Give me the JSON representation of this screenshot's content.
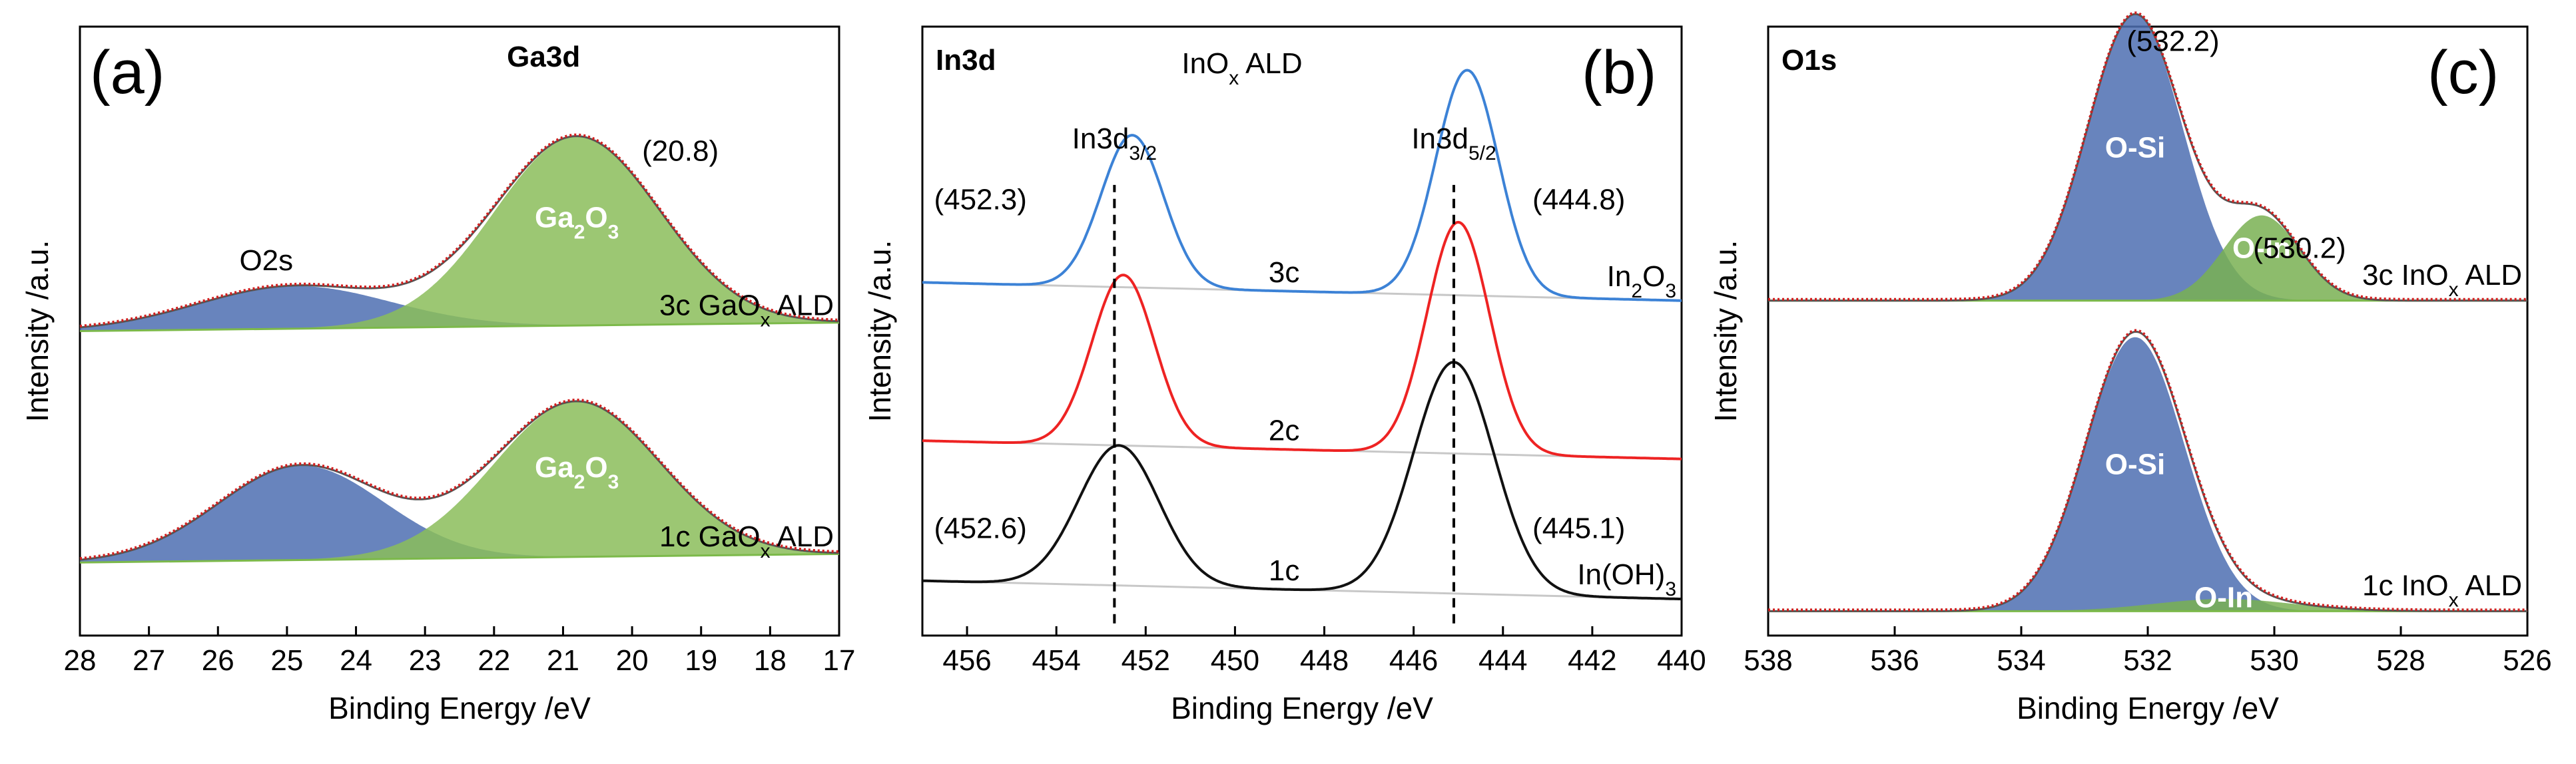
{
  "chart_data": [
    {
      "type": "line",
      "panel": "a",
      "panel_label": "(a)",
      "title": "Ga3d",
      "xlabel": "Binding Energy /eV",
      "ylabel": "Intensity /a.u.",
      "xlim": [
        28,
        17
      ],
      "xticks": [
        "28",
        "27",
        "26",
        "25",
        "24",
        "23",
        "22",
        "21",
        "20",
        "19",
        "18",
        "17"
      ],
      "ylim": [
        0,
        1
      ],
      "grid": false,
      "annotations": [
        {
          "text": "(20.8)",
          "x": 19.3,
          "y": 0.78
        },
        {
          "text": "O2s",
          "x": 25.3,
          "y": 0.6
        }
      ],
      "spectra": [
        {
          "name": "3c GaOx ALD",
          "label_main": "3c GaO",
          "label_sub": "x",
          "label_tail": " ALD",
          "offset": 0.5,
          "baseline": [
            0.0,
            0.014
          ],
          "components": [
            {
              "name": "O2s",
              "type": "gauss",
              "center": 24.9,
              "height": 0.07,
              "width": 1.4,
              "color": "#4e6eb1"
            },
            {
              "name": "Ga2O3",
              "type": "gauss",
              "center": 20.8,
              "height": 0.31,
              "width": 1.2,
              "color": "#8bbd5a",
              "label_main": "Ga",
              "label_s1": "2",
              "label_mid": "O",
              "label_s2": "3"
            }
          ]
        },
        {
          "name": "1c GaOx ALD",
          "label_main": "1c GaO",
          "label_sub": "x",
          "label_tail": " ALD",
          "offset": 0.12,
          "baseline": [
            0.0,
            0.014
          ],
          "components": [
            {
              "name": "O2s",
              "type": "gauss",
              "center": 24.8,
              "height": 0.155,
              "width": 1.2,
              "color": "#4e6eb1"
            },
            {
              "name": "Ga2O3",
              "type": "gauss",
              "center": 20.8,
              "height": 0.255,
              "width": 1.2,
              "color": "#8bbd5a",
              "label_main": "Ga",
              "label_s1": "2",
              "label_mid": "O",
              "label_s2": "3"
            }
          ]
        }
      ]
    },
    {
      "type": "line",
      "panel": "b",
      "panel_label": "(b)",
      "title": "In3d",
      "subtitle_main": "InO",
      "subtitle_sub": "x",
      "subtitle_tail": " ALD",
      "xlabel": "Binding Energy /eV",
      "ylabel": "Intensity /a.u.",
      "xlim": [
        457,
        440
      ],
      "xticks": [
        "456",
        "454",
        "452",
        "450",
        "448",
        "446",
        "444",
        "442",
        "440"
      ],
      "ylim": [
        0,
        1
      ],
      "grid": false,
      "peak_lines": [
        {
          "x": 452.7,
          "label_main": "In3d",
          "label_sub": "3/2"
        },
        {
          "x": 445.1,
          "label_main": "In3d",
          "label_sub": "5/2"
        }
      ],
      "annotations": [
        {
          "text": "(452.3)",
          "x": 455.7,
          "y": 0.7
        },
        {
          "text": "(444.8)",
          "x": 442.3,
          "y": 0.7
        },
        {
          "text": "(452.6)",
          "x": 455.7,
          "y": 0.16
        },
        {
          "text": "(445.1)",
          "x": 442.3,
          "y": 0.16
        }
      ],
      "series": [
        {
          "name": "3c",
          "label": "3c",
          "offset": 0.55,
          "baseline": [
            0.0,
            0.0
          ],
          "color": "#3c82d6",
          "end_label_main": "In",
          "end_label_s1": "2",
          "end_label_mid": "O",
          "end_label_s2": "3",
          "peaks": [
            {
              "center": 452.3,
              "height": 0.25,
              "width": 0.7
            },
            {
              "center": 444.8,
              "height": 0.37,
              "width": 0.7
            }
          ]
        },
        {
          "name": "2c",
          "label": "2c",
          "offset": 0.29,
          "baseline": [
            0.0,
            0.0
          ],
          "color": "#ee2323",
          "peaks": [
            {
              "center": 452.5,
              "height": 0.28,
              "width": 0.7
            },
            {
              "center": 445.0,
              "height": 0.38,
              "width": 0.7
            }
          ]
        },
        {
          "name": "1c",
          "label": "1c",
          "offset": 0.06,
          "baseline": [
            0.0,
            0.0
          ],
          "color": "#111111",
          "end_label_main": "In(OH)",
          "end_label_s1": "3",
          "peaks": [
            {
              "center": 452.6,
              "height": 0.23,
              "width": 0.9
            },
            {
              "center": 445.1,
              "height": 0.38,
              "width": 0.9
            }
          ]
        }
      ]
    },
    {
      "type": "line",
      "panel": "c",
      "panel_label": "(c)",
      "title": "O1s",
      "xlabel": "Binding Energy /eV",
      "ylabel": "Intensity /a.u.",
      "xlim": [
        538,
        526
      ],
      "xticks": [
        "538",
        "536",
        "534",
        "532",
        "530",
        "528",
        "526"
      ],
      "ylim": [
        0,
        1
      ],
      "grid": false,
      "annotations": [
        {
          "text": "(532.2)",
          "x": 531.6,
          "y": 0.96
        },
        {
          "text": "(530.2)",
          "x": 529.6,
          "y": 0.62
        }
      ],
      "spectra": [
        {
          "name": "3c InOx ALD",
          "label_main": "3c InO",
          "label_sub": "x",
          "label_tail": " ALD",
          "offset": 0.55,
          "baseline": [
            0.0,
            0.0
          ],
          "components": [
            {
              "name": "O-Si",
              "type": "gauss",
              "center": 532.2,
              "height": 0.47,
              "width": 0.75,
              "color": "#4e6eb1",
              "label": "O-Si"
            },
            {
              "name": "O-In",
              "type": "gauss",
              "center": 530.2,
              "height": 0.14,
              "width": 0.6,
              "color": "#79b052",
              "label": "O-In"
            }
          ]
        },
        {
          "name": "1c InOx ALD",
          "label_main": "1c InO",
          "label_sub": "x",
          "label_tail": " ALD",
          "offset": 0.04,
          "baseline": [
            0.0,
            0.0
          ],
          "components": [
            {
              "name": "O-Si",
              "type": "gauss",
              "center": 532.2,
              "height": 0.45,
              "width": 0.78,
              "color": "#4e6eb1",
              "label": "O-Si"
            },
            {
              "name": "O-In",
              "type": "gauss",
              "center": 530.8,
              "height": 0.02,
              "width": 1.1,
              "color": "#79b052",
              "label": "O-In"
            }
          ]
        }
      ]
    }
  ]
}
